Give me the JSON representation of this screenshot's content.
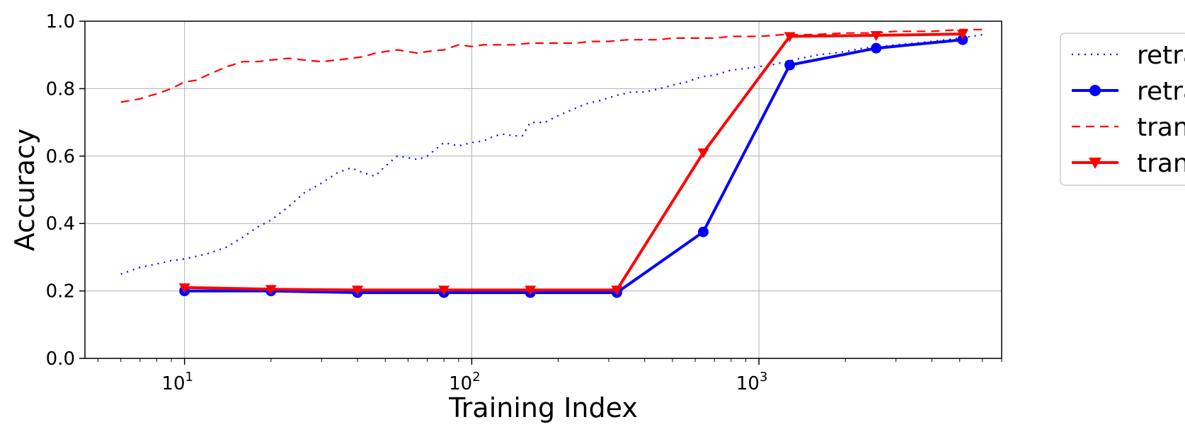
{
  "chart_data": {
    "type": "line",
    "title": "",
    "xlabel": "Training Index",
    "ylabel": "Accuracy",
    "xscale": "log",
    "xlim": [
      4.5,
      7000
    ],
    "ylim": [
      0.0,
      1.0
    ],
    "grid": true,
    "legend_position": "outside right",
    "y_ticks": [
      "0.0",
      "0.2",
      "0.4",
      "0.6",
      "0.8",
      "1.0"
    ],
    "x_ticks": [
      {
        "base": "10",
        "exp": "1"
      },
      {
        "base": "10",
        "exp": "2"
      },
      {
        "base": "10",
        "exp": "3"
      }
    ],
    "series": [
      {
        "name": "retra",
        "color": "#0000ff",
        "style": "dotted",
        "marker": "none",
        "x": [
          6,
          7,
          8,
          9,
          10,
          12,
          14,
          16,
          18,
          20,
          23,
          26,
          30,
          34,
          38,
          42,
          46,
          50,
          55,
          60,
          65,
          70,
          80,
          90,
          100,
          110,
          120,
          130,
          140,
          150,
          160,
          180,
          200,
          220,
          250,
          280,
          320,
          360,
          400,
          450,
          500,
          560,
          630,
          700,
          800,
          900,
          1000,
          1100,
          1250,
          1400,
          1600,
          1800,
          2000,
          2300,
          2600,
          3000,
          3500,
          4000,
          4500,
          5000,
          5500,
          6000
        ],
        "y": [
          0.25,
          0.27,
          0.28,
          0.29,
          0.295,
          0.31,
          0.33,
          0.36,
          0.39,
          0.41,
          0.45,
          0.49,
          0.52,
          0.55,
          0.565,
          0.55,
          0.54,
          0.57,
          0.6,
          0.595,
          0.59,
          0.6,
          0.64,
          0.63,
          0.64,
          0.645,
          0.66,
          0.665,
          0.66,
          0.66,
          0.7,
          0.7,
          0.72,
          0.735,
          0.755,
          0.765,
          0.78,
          0.79,
          0.79,
          0.8,
          0.81,
          0.82,
          0.835,
          0.84,
          0.855,
          0.86,
          0.865,
          0.87,
          0.88,
          0.89,
          0.9,
          0.905,
          0.91,
          0.92,
          0.925,
          0.93,
          0.935,
          0.94,
          0.945,
          0.95,
          0.955,
          0.96
        ]
      },
      {
        "name": "retra",
        "color": "#0000ff",
        "style": "solid",
        "marker": "circle",
        "x": [
          10,
          20,
          40,
          80,
          160,
          320,
          640,
          1280,
          2560,
          5120
        ],
        "y": [
          0.2,
          0.2,
          0.195,
          0.195,
          0.195,
          0.195,
          0.375,
          0.87,
          0.92,
          0.945
        ]
      },
      {
        "name": "tran",
        "color": "#ff0000",
        "style": "dashed",
        "marker": "none",
        "x": [
          6,
          7,
          8,
          9,
          10,
          11,
          12,
          14,
          16,
          18,
          20,
          23,
          26,
          30,
          34,
          38,
          42,
          46,
          50,
          55,
          60,
          65,
          70,
          80,
          90,
          100,
          110,
          120,
          140,
          160,
          180,
          200,
          230,
          260,
          300,
          350,
          400,
          450,
          500,
          600,
          700,
          800,
          1000,
          1200,
          1500,
          2000,
          2500,
          3000,
          4000,
          5000,
          6000
        ],
        "y": [
          0.76,
          0.77,
          0.785,
          0.8,
          0.82,
          0.825,
          0.84,
          0.865,
          0.88,
          0.88,
          0.885,
          0.89,
          0.885,
          0.88,
          0.885,
          0.89,
          0.895,
          0.905,
          0.91,
          0.915,
          0.91,
          0.905,
          0.91,
          0.915,
          0.93,
          0.925,
          0.93,
          0.93,
          0.93,
          0.935,
          0.935,
          0.935,
          0.935,
          0.94,
          0.94,
          0.945,
          0.945,
          0.945,
          0.95,
          0.95,
          0.95,
          0.955,
          0.955,
          0.96,
          0.96,
          0.965,
          0.965,
          0.97,
          0.97,
          0.975,
          0.975
        ]
      },
      {
        "name": "tran",
        "color": "#ff0000",
        "style": "solid",
        "marker": "triangle-down",
        "x": [
          10,
          20,
          40,
          80,
          160,
          320,
          640,
          1280,
          2560,
          5120
        ],
        "y": [
          0.21,
          0.205,
          0.203,
          0.203,
          0.203,
          0.203,
          0.61,
          0.955,
          0.958,
          0.962
        ]
      }
    ]
  }
}
